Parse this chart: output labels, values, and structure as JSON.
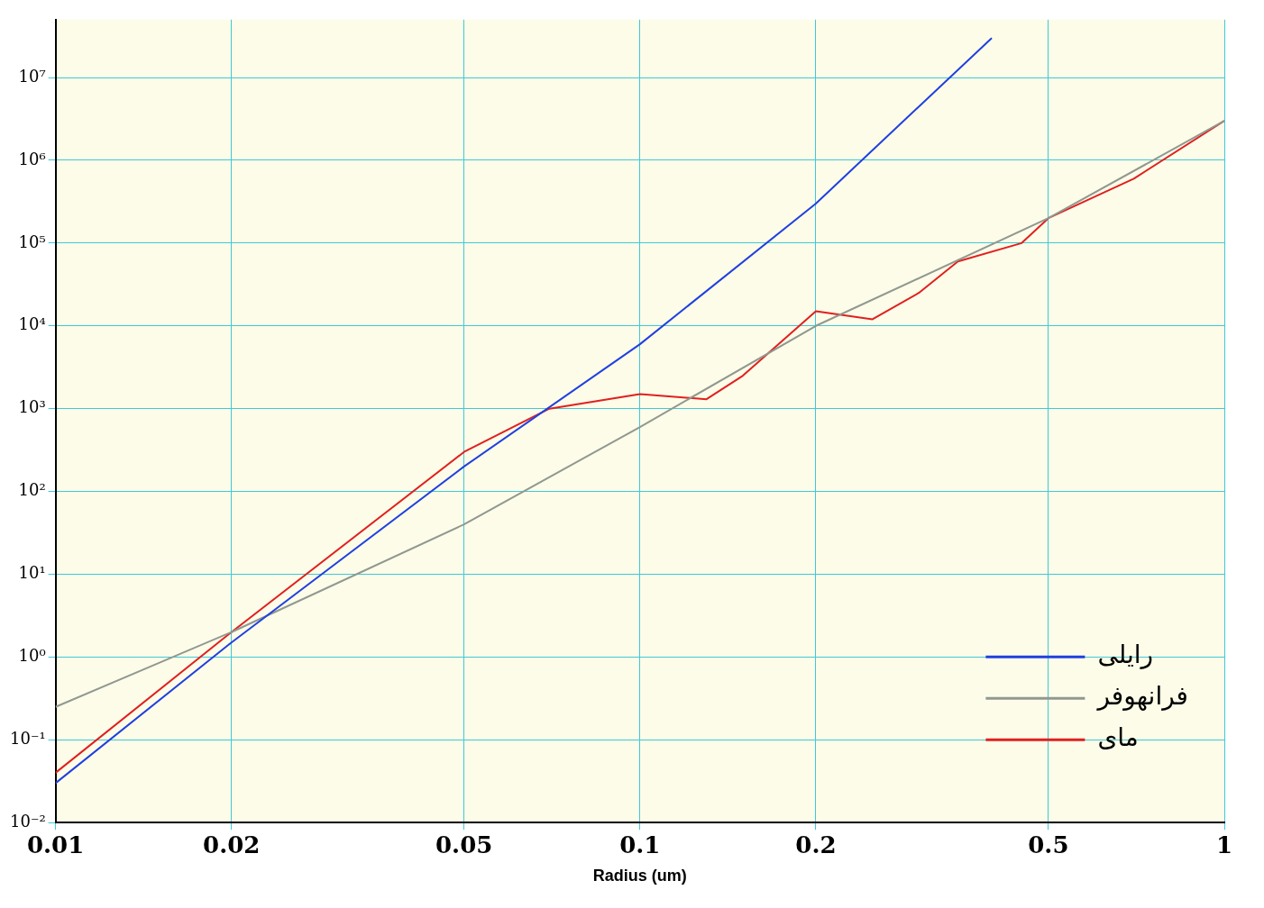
{
  "chart_data": {
    "type": "line",
    "xlabel": "Radius (um)",
    "log": "xy",
    "grid": true,
    "legend": "bottom right",
    "marker": "none",
    "line_style": "solid",
    "xlim": [
      0.01,
      1
    ],
    "xticks": [
      0.01,
      0.02,
      0.05,
      0.1,
      0.2,
      0.5,
      1
    ],
    "ylim": [
      0.01,
      50000000
    ],
    "yticks": [
      {
        "value": 0.01,
        "label": "10⁻²"
      },
      {
        "value": 0.1,
        "label": "10⁻¹"
      },
      {
        "value": 1,
        "label": "10⁰"
      },
      {
        "value": 10,
        "label": "10¹"
      },
      {
        "value": 100,
        "label": "10²"
      },
      {
        "value": 1000,
        "label": "10³"
      },
      {
        "value": 10000,
        "label": "10⁴"
      },
      {
        "value": 100000,
        "label": "10⁵"
      },
      {
        "value": 1000000,
        "label": "10⁶"
      },
      {
        "value": 10000000,
        "label": "10⁷"
      }
    ],
    "series": [
      {
        "name": "رایلی",
        "color": "#2040e0",
        "x": [
          0.01,
          0.02,
          0.05,
          0.1,
          0.2,
          0.4
        ],
        "values": [
          0.03,
          1.5,
          200,
          6000,
          300000,
          30000000
        ]
      },
      {
        "name": "فرانهوفر",
        "color": "#909890",
        "x": [
          0.01,
          0.02,
          0.05,
          0.1,
          0.2,
          0.5,
          1
        ],
        "values": [
          0.25,
          2,
          40,
          600,
          10000,
          200000,
          3000000
        ]
      },
      {
        "name": "مای",
        "color": "#e02020",
        "x": [
          0.01,
          0.02,
          0.05,
          0.07,
          0.1,
          0.13,
          0.15,
          0.2,
          0.25,
          0.3,
          0.35,
          0.45,
          0.5,
          0.7,
          1
        ],
        "values": [
          0.04,
          2,
          300,
          1000,
          1500,
          1300,
          2500,
          15000,
          12000,
          25000,
          60000,
          100000,
          200000,
          600000,
          3000000
        ]
      }
    ]
  }
}
